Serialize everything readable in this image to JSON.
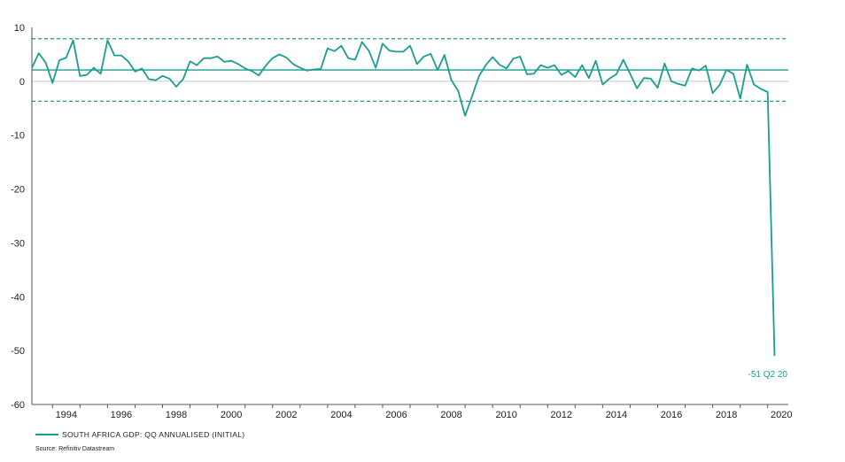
{
  "chart_data": {
    "type": "line",
    "title": "",
    "xlabel": "",
    "ylabel": "",
    "ylim": [
      -60,
      10
    ],
    "yticks": [
      10,
      0,
      -10,
      -20,
      -30,
      -40,
      -50,
      -60
    ],
    "xlim": [
      1993.25,
      2020.75
    ],
    "xticks": [
      1994,
      1996,
      1998,
      2000,
      2002,
      2004,
      2006,
      2008,
      2010,
      2012,
      2014,
      2016,
      2018,
      2020
    ],
    "legend_position": "bottom-left",
    "colors": {
      "series": "#1a9e8f",
      "zero_line": "#c8c8c8",
      "axis": "#555555"
    },
    "series": [
      {
        "name": "SOUTH AFRICA GDP: QQ ANNUALISED (INITIAL)",
        "x": [
          "1993 Q2",
          "1993 Q3",
          "1993 Q4",
          "1994 Q1",
          "1994 Q2",
          "1994 Q3",
          "1994 Q4",
          "1995 Q1",
          "1995 Q2",
          "1995 Q3",
          "1995 Q4",
          "1996 Q1",
          "1996 Q2",
          "1996 Q3",
          "1996 Q4",
          "1997 Q1",
          "1997 Q2",
          "1997 Q3",
          "1997 Q4",
          "1998 Q1",
          "1998 Q2",
          "1998 Q3",
          "1998 Q4",
          "1999 Q1",
          "1999 Q2",
          "1999 Q3",
          "1999 Q4",
          "2000 Q1",
          "2000 Q2",
          "2000 Q3",
          "2000 Q4",
          "2001 Q1",
          "2001 Q2",
          "2001 Q3",
          "2001 Q4",
          "2002 Q1",
          "2002 Q2",
          "2002 Q3",
          "2002 Q4",
          "2003 Q1",
          "2003 Q2",
          "2003 Q3",
          "2003 Q4",
          "2004 Q1",
          "2004 Q2",
          "2004 Q3",
          "2004 Q4",
          "2005 Q1",
          "2005 Q2",
          "2005 Q3",
          "2005 Q4",
          "2006 Q1",
          "2006 Q2",
          "2006 Q3",
          "2006 Q4",
          "2007 Q1",
          "2007 Q2",
          "2007 Q3",
          "2007 Q4",
          "2008 Q1",
          "2008 Q2",
          "2008 Q3",
          "2008 Q4",
          "2009 Q1",
          "2009 Q2",
          "2009 Q3",
          "2009 Q4",
          "2010 Q1",
          "2010 Q2",
          "2010 Q3",
          "2010 Q4",
          "2011 Q1",
          "2011 Q2",
          "2011 Q3",
          "2011 Q4",
          "2012 Q1",
          "2012 Q2",
          "2012 Q3",
          "2012 Q4",
          "2013 Q1",
          "2013 Q2",
          "2013 Q3",
          "2013 Q4",
          "2014 Q1",
          "2014 Q2",
          "2014 Q3",
          "2014 Q4",
          "2015 Q1",
          "2015 Q2",
          "2015 Q3",
          "2015 Q4",
          "2016 Q1",
          "2016 Q2",
          "2016 Q3",
          "2016 Q4",
          "2017 Q1",
          "2017 Q2",
          "2017 Q3",
          "2017 Q4",
          "2018 Q1",
          "2018 Q2",
          "2018 Q3",
          "2018 Q4",
          "2019 Q1",
          "2019 Q2",
          "2019 Q3",
          "2019 Q4",
          "2020 Q1",
          "2020 Q2"
        ],
        "values": [
          2.5,
          5.2,
          3.5,
          -0.3,
          3.9,
          4.4,
          7.6,
          1.0,
          1.2,
          2.5,
          1.4,
          7.6,
          4.8,
          4.8,
          3.7,
          1.8,
          2.4,
          0.4,
          0.2,
          1.0,
          0.5,
          -1.0,
          0.4,
          3.7,
          3.0,
          4.3,
          4.3,
          4.6,
          3.6,
          3.8,
          3.2,
          2.4,
          1.9,
          1.1,
          2.9,
          4.3,
          5.0,
          4.4,
          3.2,
          2.5,
          2.0,
          2.2,
          2.3,
          6.1,
          5.6,
          6.6,
          4.3,
          4.0,
          7.3,
          5.7,
          2.5,
          7.0,
          5.7,
          5.5,
          5.5,
          6.6,
          3.2,
          4.6,
          5.1,
          2.1,
          4.9,
          0.2,
          -1.8,
          -6.4,
          -2.8,
          0.9,
          3.0,
          4.5,
          3.1,
          2.4,
          4.2,
          4.6,
          1.3,
          1.4,
          3.0,
          2.5,
          3.0,
          1.2,
          1.9,
          0.8,
          3.0,
          0.6,
          3.8,
          -0.6,
          0.5,
          1.3,
          4.0,
          1.4,
          -1.3,
          0.6,
          0.5,
          -1.2,
          3.3,
          0.0,
          -0.5,
          -0.8,
          2.4,
          2.0,
          2.9,
          -2.2,
          -0.7,
          2.1,
          1.4,
          -3.2,
          3.1,
          -0.6,
          -1.4,
          -2.0,
          -51.0
        ]
      }
    ],
    "reference_lines": [
      {
        "y": 2.1,
        "style": "solid"
      },
      {
        "y": 7.9,
        "style": "dashed"
      },
      {
        "y": -3.7,
        "style": "dashed"
      }
    ],
    "annotation": {
      "text": "-51 Q2 20"
    },
    "source": "Source: Refinitiv Datastream"
  }
}
